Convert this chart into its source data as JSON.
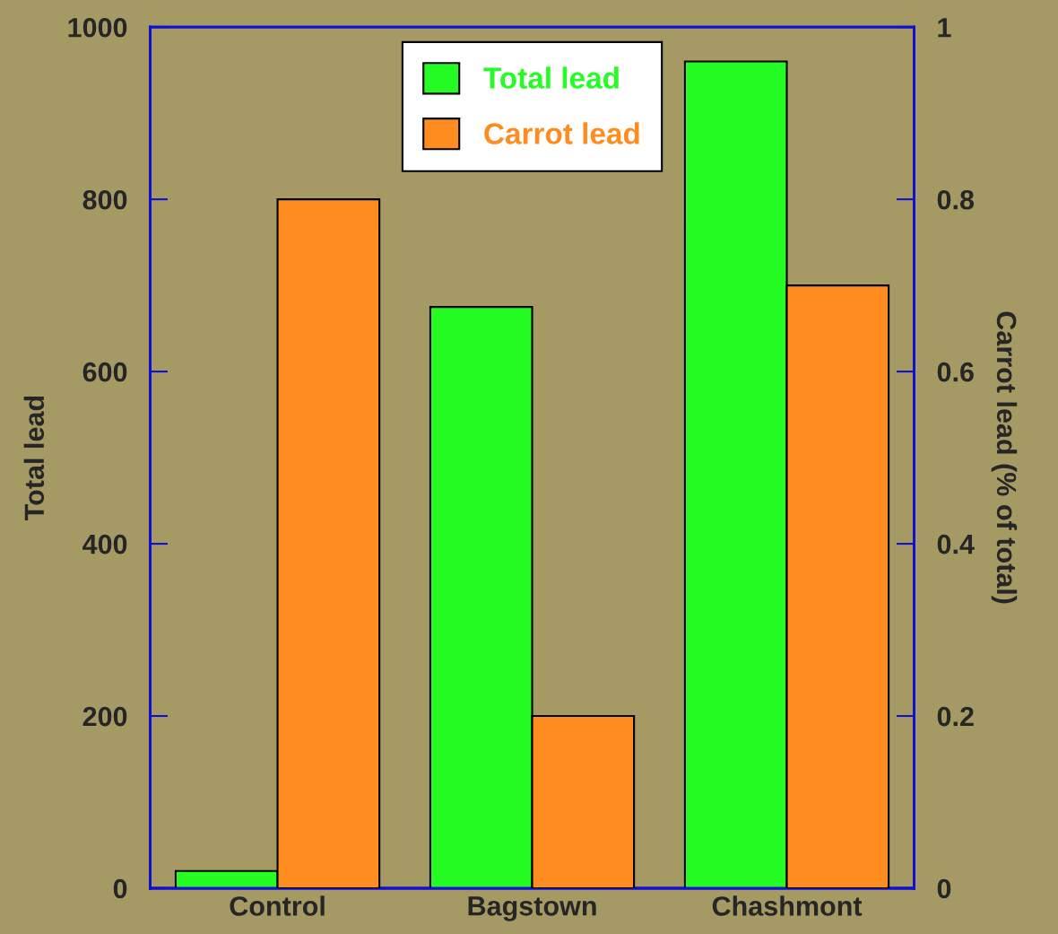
{
  "chart_data": {
    "type": "bar",
    "categories": [
      "Control",
      "Bagstown",
      "Chashmont"
    ],
    "ylabel": "Total lead",
    "y2label": "Carrot lead (% of total)",
    "series": [
      {
        "name": "Total lead",
        "color": "#24fc24",
        "values": [
          20,
          675,
          960
        ]
      },
      {
        "name": "Carrot lead",
        "color": "#ff8c1e",
        "values": [
          0.8,
          0.2,
          0.7
        ],
        "axis": "y2"
      }
    ],
    "ylim": [
      0,
      1000
    ],
    "yticks": [
      0,
      200,
      400,
      600,
      800,
      1000
    ],
    "y2lim": [
      0,
      1
    ],
    "y2ticks": [
      0,
      0.2,
      0.4,
      0.6,
      0.8,
      1
    ],
    "legend": "top",
    "grid": false
  }
}
